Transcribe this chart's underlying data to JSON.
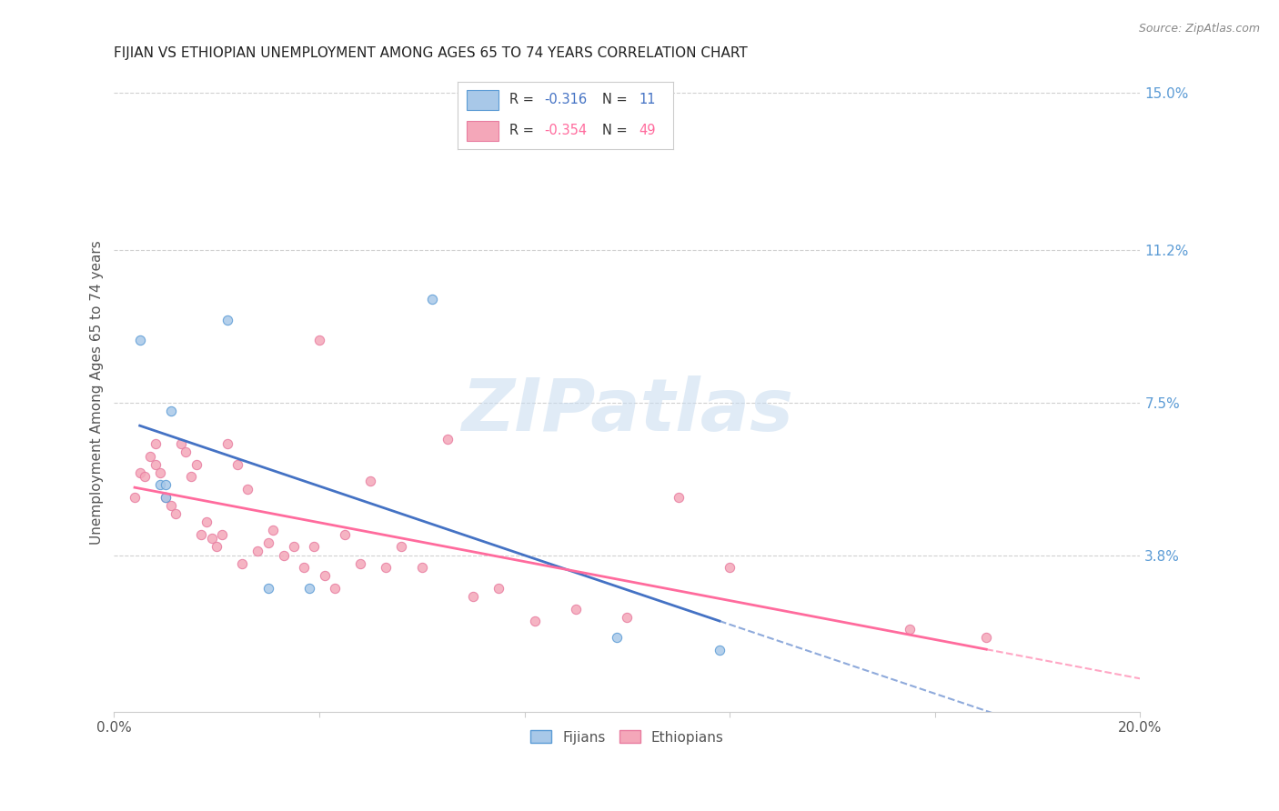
{
  "title": "FIJIAN VS ETHIOPIAN UNEMPLOYMENT AMONG AGES 65 TO 74 YEARS CORRELATION CHART",
  "source": "Source: ZipAtlas.com",
  "ylabel": "Unemployment Among Ages 65 to 74 years",
  "xlim": [
    0.0,
    0.2
  ],
  "ylim": [
    0.0,
    0.155
  ],
  "ytick_right_labels": [
    "15.0%",
    "11.2%",
    "7.5%",
    "3.8%"
  ],
  "ytick_right_values": [
    0.15,
    0.112,
    0.075,
    0.038
  ],
  "fijian_color": "#A8C8E8",
  "ethiopian_color": "#F4A7B9",
  "fijian_edge_color": "#5B9BD5",
  "ethiopian_edge_color": "#E87DA0",
  "fijian_line_color": "#4472C4",
  "ethiopian_line_color": "#FF6B9D",
  "fijian_R": -0.316,
  "fijian_N": 11,
  "ethiopian_R": -0.354,
  "ethiopian_N": 49,
  "watermark": "ZIPatlas",
  "fijian_x": [
    0.005,
    0.009,
    0.01,
    0.01,
    0.011,
    0.022,
    0.03,
    0.038,
    0.062,
    0.098,
    0.118
  ],
  "fijian_y": [
    0.09,
    0.055,
    0.055,
    0.052,
    0.073,
    0.095,
    0.03,
    0.03,
    0.1,
    0.018,
    0.015
  ],
  "ethiopian_x": [
    0.004,
    0.005,
    0.006,
    0.007,
    0.008,
    0.008,
    0.009,
    0.01,
    0.011,
    0.012,
    0.013,
    0.014,
    0.015,
    0.016,
    0.017,
    0.018,
    0.019,
    0.02,
    0.021,
    0.022,
    0.024,
    0.025,
    0.026,
    0.028,
    0.03,
    0.031,
    0.033,
    0.035,
    0.037,
    0.039,
    0.041,
    0.043,
    0.045,
    0.048,
    0.05,
    0.053,
    0.056,
    0.06,
    0.065,
    0.07,
    0.075,
    0.082,
    0.09,
    0.1,
    0.11,
    0.12,
    0.155,
    0.17,
    0.04
  ],
  "ethiopian_y": [
    0.052,
    0.058,
    0.057,
    0.062,
    0.065,
    0.06,
    0.058,
    0.052,
    0.05,
    0.048,
    0.065,
    0.063,
    0.057,
    0.06,
    0.043,
    0.046,
    0.042,
    0.04,
    0.043,
    0.065,
    0.06,
    0.036,
    0.054,
    0.039,
    0.041,
    0.044,
    0.038,
    0.04,
    0.035,
    0.04,
    0.033,
    0.03,
    0.043,
    0.036,
    0.056,
    0.035,
    0.04,
    0.035,
    0.066,
    0.028,
    0.03,
    0.022,
    0.025,
    0.023,
    0.052,
    0.035,
    0.02,
    0.018,
    0.09
  ],
  "bg_color": "#FFFFFF",
  "grid_color": "#D0D0D0"
}
